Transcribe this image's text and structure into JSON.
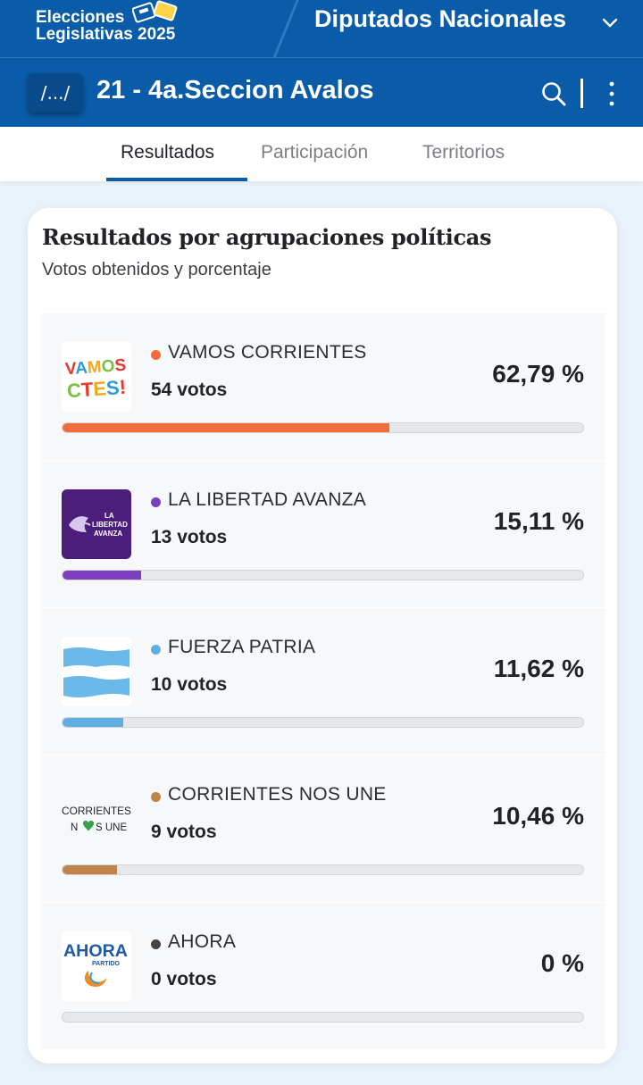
{
  "header": {
    "brand_line1": "Elecciones",
    "brand_line2": "Legislativas 2025",
    "election_type": "Diputados Nacionales",
    "brand_color": "#0a5ca8"
  },
  "section": {
    "path_label": "/.../",
    "title": "21 - 4a.Seccion Avalos"
  },
  "tabs": [
    {
      "label": "Resultados",
      "active": true
    },
    {
      "label": "Participación",
      "active": false
    },
    {
      "label": "Territorios",
      "active": false
    }
  ],
  "results": {
    "title": "Resultados por agrupaciones políticas",
    "subtitle": "Votos obtenidos y porcentaje",
    "parties": [
      {
        "name": "VAMOS CORRIENTES",
        "votes": "54 votos",
        "percent": "62,79 %",
        "share": 62.79,
        "color": "#f26b3a",
        "logo": "vamos-corrientes-logo",
        "logo_text": "VAMOS CTES!"
      },
      {
        "name": "LA LIBERTAD AVANZA",
        "votes": "13 votos",
        "percent": "15,11 %",
        "share": 15.11,
        "color": "#7b3fbf",
        "logo": "la-libertad-avanza-logo",
        "logo_text": "LA LIBERTAD AVANZA"
      },
      {
        "name": "FUERZA PATRIA",
        "votes": "10 votos",
        "percent": "11,62 %",
        "share": 11.62,
        "color": "#5eaee0",
        "logo": "fuerza-patria-flag-logo",
        "logo_text": ""
      },
      {
        "name": "CORRIENTES NOS UNE",
        "votes": "9 votos",
        "percent": "10,46 %",
        "share": 10.46,
        "color": "#c0844a",
        "logo": "corrientes-nos-une-logo",
        "logo_text": "CORRIENTES NOS UNE"
      },
      {
        "name": "AHORA",
        "votes": "0 votos",
        "percent": "0 %",
        "share": 0,
        "color": "#444444",
        "logo": "ahora-partido-logo",
        "logo_text": "AHORA PARTIDO"
      }
    ]
  }
}
